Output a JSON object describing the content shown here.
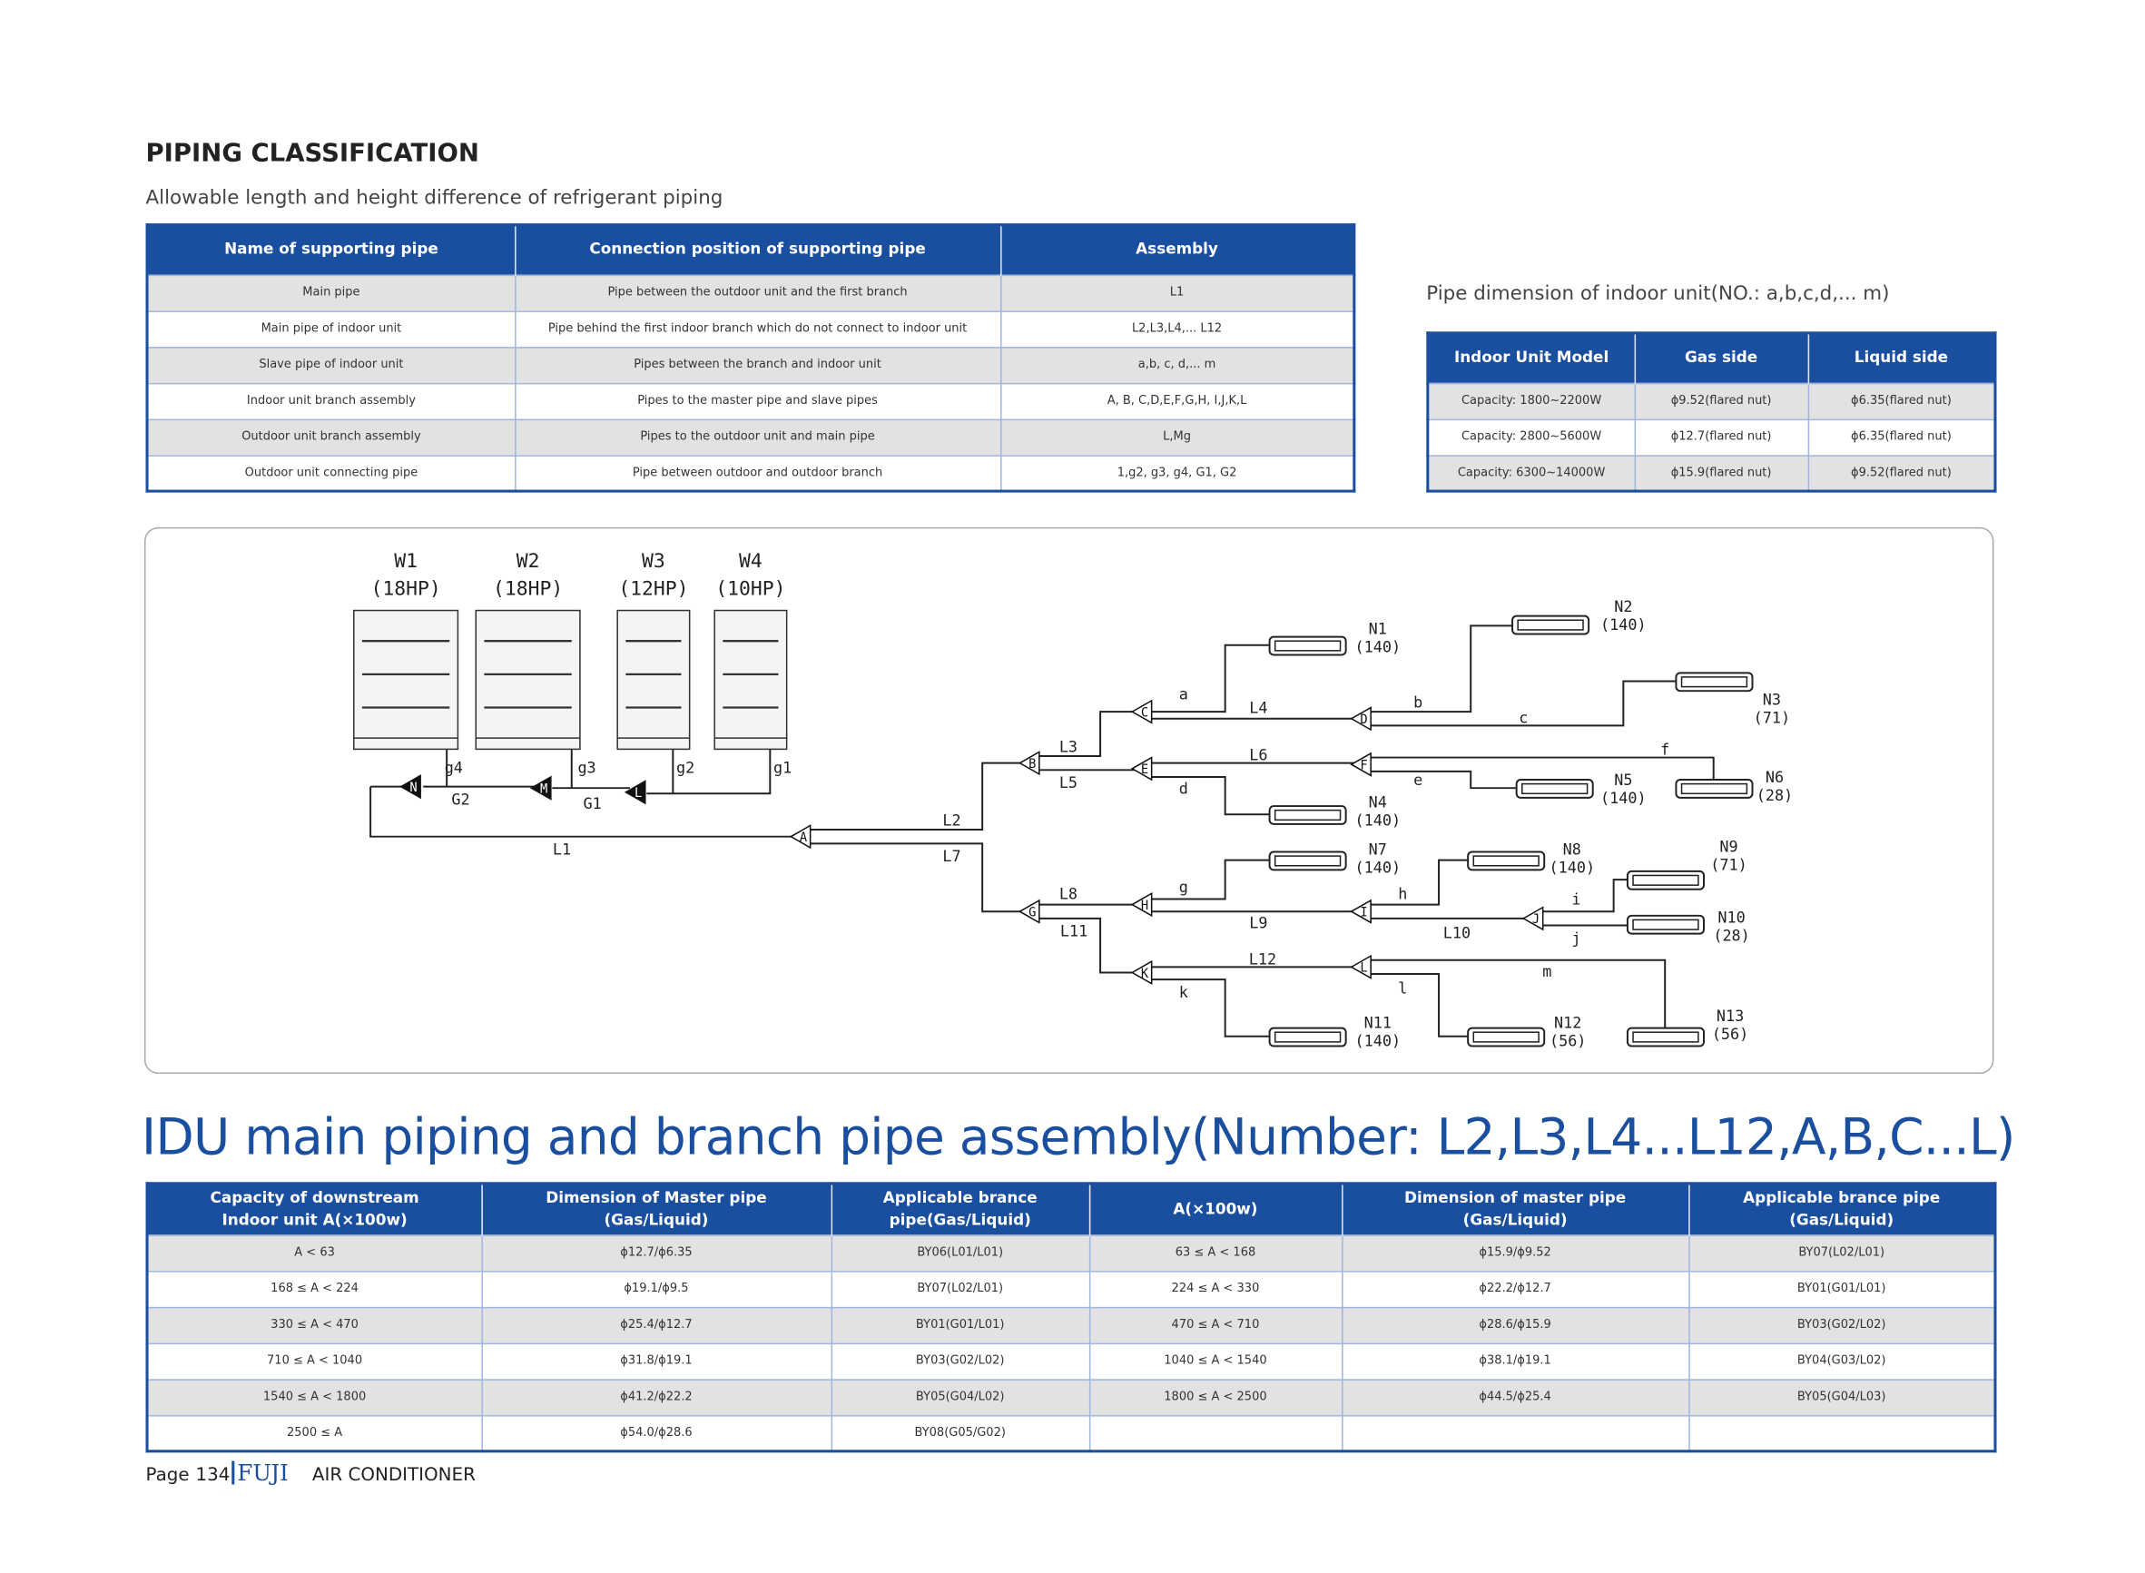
{
  "header": {
    "title": "PIPING CLASSIFICATION",
    "subtitle": "Allowable length and height difference of refrigerant piping"
  },
  "table1": {
    "headers": [
      "Name of supporting pipe",
      "Connection position of supporting pipe",
      "Assembly"
    ],
    "rows": [
      [
        "Main pipe",
        "Pipe between the outdoor unit and the first branch",
        "L1"
      ],
      [
        "Main pipe of indoor unit",
        "Pipe behind the first indoor branch which do not connect to indoor unit",
        "L2,L3,L4,... L12"
      ],
      [
        "Slave pipe of indoor unit",
        "Pipes between the branch and indoor unit",
        "a,b, c, d,... m"
      ],
      [
        "Indoor unit branch assembly",
        "Pipes to the master pipe and slave pipes",
        "A, B, C,D,E,F,G,H, I,J,K,L"
      ],
      [
        "Outdoor unit branch assembly",
        "Pipes to the outdoor unit and main pipe",
        "L,Mg"
      ],
      [
        "Outdoor unit connecting pipe",
        "Pipe between outdoor and outdoor branch",
        "1,g2, g3, g4, G1, G2"
      ]
    ]
  },
  "table2": {
    "title": "Pipe dimension of indoor unit(NO.: a,b,c,d,... m)",
    "headers": [
      "Indoor Unit Model",
      "Gas side",
      "Liquid side"
    ],
    "rows": [
      [
        "Capacity: 1800~2200W",
        "ϕ9.52(flared nut)",
        "ϕ6.35(flared nut)"
      ],
      [
        "Capacity: 2800~5600W",
        "ϕ12.7(flared nut)",
        "ϕ6.35(flared nut)"
      ],
      [
        "Capacity: 6300~14000W",
        "ϕ15.9(flared nut)",
        "ϕ9.52(flared nut)"
      ]
    ]
  },
  "diagram": {
    "outdoor_units": [
      {
        "name": "W1",
        "capacity": "(18HP)"
      },
      {
        "name": "W2",
        "capacity": "(18HP)"
      },
      {
        "name": "W3",
        "capacity": "(12HP)"
      },
      {
        "name": "W4",
        "capacity": "(10HP)"
      }
    ],
    "branches": [
      "N",
      "M",
      "L",
      "A",
      "B",
      "G",
      "C",
      "E",
      "H",
      "K",
      "D",
      "F",
      "I",
      "J",
      "L"
    ],
    "pipe_labels": [
      "g4",
      "g3",
      "g2",
      "g1",
      "G2",
      "G1",
      "L1",
      "L2",
      "L7",
      "L3",
      "L5",
      "L8",
      "L11",
      "a",
      "L4",
      "L6",
      "d",
      "g",
      "L9",
      "k",
      "L12",
      "b",
      "c",
      "f",
      "e",
      "h",
      "L10",
      "i",
      "j",
      "m",
      "l"
    ],
    "indoor_units": [
      {
        "name": "N1",
        "capacity": "(140)"
      },
      {
        "name": "N2",
        "capacity": "(140)"
      },
      {
        "name": "N3",
        "capacity": "(71)"
      },
      {
        "name": "N4",
        "capacity": "(140)"
      },
      {
        "name": "N5",
        "capacity": "(140)"
      },
      {
        "name": "N6",
        "capacity": "(28)"
      },
      {
        "name": "N7",
        "capacity": "(140)"
      },
      {
        "name": "N8",
        "capacity": "(140)"
      },
      {
        "name": "N9",
        "capacity": "(71)"
      },
      {
        "name": "N10",
        "capacity": "(28)"
      },
      {
        "name": "N11",
        "capacity": "(140)"
      },
      {
        "name": "N12",
        "capacity": "(56)"
      },
      {
        "name": "N13",
        "capacity": "(56)"
      }
    ]
  },
  "section_title": "IDU main piping and branch pipe assembly(Number: L2,L3,L4...L12,A,B,C...L)",
  "table3": {
    "headers": [
      "Capacity of downstream\nIndoor unit A(×100w)",
      "Dimension of Master pipe\n(Gas/Liquid)",
      "Applicable brance\npipe(Gas/Liquid)",
      "A(×100w)",
      "Dimension of master pipe\n(Gas/Liquid)",
      "Applicable brance pipe\n(Gas/Liquid)"
    ],
    "rows": [
      [
        "A < 63",
        "ϕ12.7/ϕ6.35",
        "BY06(L01/L01)",
        "63 ≤ A < 168",
        "ϕ15.9/ϕ9.52",
        "BY07(L02/L01)"
      ],
      [
        "168 ≤ A < 224",
        "ϕ19.1/ϕ9.5",
        "BY07(L02/L01)",
        "224 ≤ A < 330",
        "ϕ22.2/ϕ12.7",
        "BY01(G01/L01)"
      ],
      [
        "330 ≤ A < 470",
        "ϕ25.4/ϕ12.7",
        "BY01(G01/L01)",
        "470 ≤ A < 710",
        "ϕ28.6/ϕ15.9",
        "BY03(G02/L02)"
      ],
      [
        "710 ≤ A < 1040",
        "ϕ31.8/ϕ19.1",
        "BY03(G02/L02)",
        "1040 ≤ A < 1540",
        "ϕ38.1/ϕ19.1",
        "BY04(G03/L02)"
      ],
      [
        "1540 ≤ A < 1800",
        "ϕ41.2/ϕ22.2",
        "BY05(G04/L02)",
        "1800 ≤ A < 2500",
        "ϕ44.5/ϕ25.4",
        "BY05(G04/L03)"
      ],
      [
        "2500 ≤ A",
        "ϕ54.0/ϕ28.6",
        "BY08(G05/G02)"
      ]
    ]
  },
  "footer": {
    "page_label": "Page",
    "page_number": "134",
    "brand": "FUJI",
    "product": "AIR CONDITIONER"
  }
}
